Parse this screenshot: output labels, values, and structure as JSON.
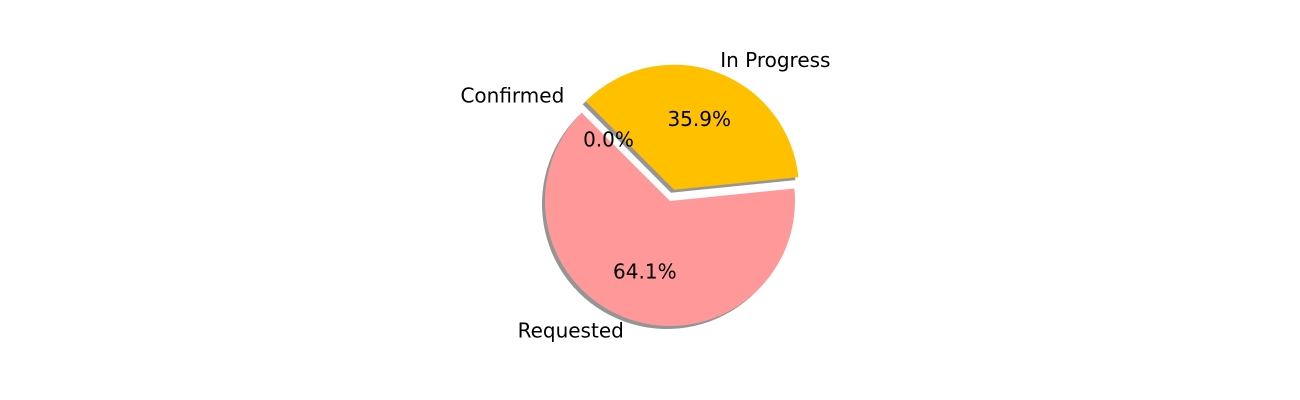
{
  "chart_data": {
    "type": "pie",
    "title": "",
    "slices": [
      {
        "label": "Confirmed",
        "value": 0.0,
        "percent_label": "0.0%",
        "color": "#66b3ff",
        "explode": true
      },
      {
        "label": "Requested",
        "value": 64.1,
        "percent_label": "64.1%",
        "color": "#ff9999",
        "explode": false
      },
      {
        "label": "In Progress",
        "value": 35.9,
        "percent_label": "35.9%",
        "color": "#ffc000",
        "explode": true
      }
    ],
    "start_angle_deg": 135,
    "direction": "counterclockwise",
    "shadow": true,
    "autopct": true,
    "legend": "none"
  }
}
